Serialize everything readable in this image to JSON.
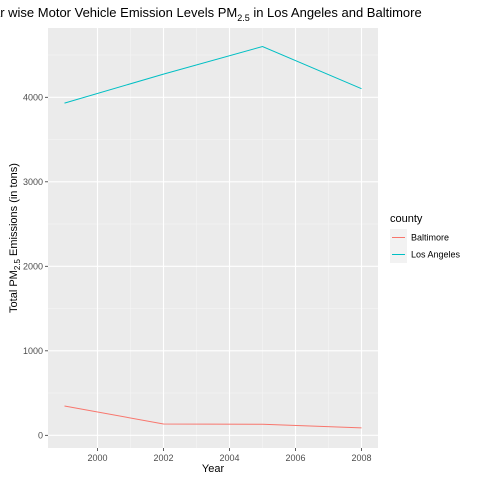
{
  "chart_data": {
    "type": "line",
    "title": {
      "prefix": "Year wise Motor Vehicle Emission Levels ",
      "pm": "PM",
      "pm_sub": "2.5",
      "suffix": "  in Los Angeles and Baltimore"
    },
    "xlabel": "Year",
    "ylabel": {
      "prefix": "Total ",
      "pm": "PM",
      "pm_sub": "2.5",
      "suffix": " Emissions (in tons)"
    },
    "x": [
      1999,
      2002,
      2005,
      2008
    ],
    "xlim": [
      1998.5,
      2008.5
    ],
    "ylim": [
      -150,
      4820
    ],
    "x_ticks": [
      2000,
      2002,
      2004,
      2006,
      2008
    ],
    "y_ticks": [
      0,
      1000,
      2000,
      3000,
      4000
    ],
    "grid": true,
    "legend": {
      "title": "county",
      "placement": "right"
    },
    "series": [
      {
        "name": "Baltimore",
        "color": "#F8766D",
        "values": [
          346.8,
          134.3,
          130.4,
          88.3
        ]
      },
      {
        "name": "Los Angeles",
        "color": "#00BFC4",
        "values": [
          3931.1,
          4274.0,
          4601.4,
          4101.3
        ]
      }
    ]
  }
}
